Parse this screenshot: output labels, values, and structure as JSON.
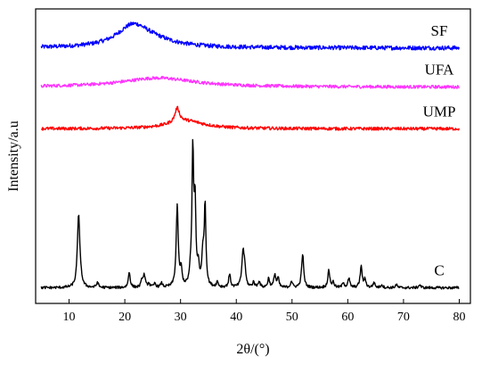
{
  "chart_data": {
    "type": "line",
    "title": "",
    "xlabel": "2θ/(°)",
    "ylabel": "Intensity/a.u",
    "xlim": [
      4,
      82
    ],
    "x_ticks": [
      10,
      20,
      30,
      40,
      50,
      60,
      70,
      80
    ],
    "y_ticks_labeled": false,
    "grid": false,
    "series": [
      {
        "name": "SF",
        "color": "#0000ff",
        "baseline": 9.3,
        "noise": 0.08,
        "peaks": [
          {
            "x": 21.5,
            "h": 0.8,
            "w": 3.5
          },
          {
            "x": 25,
            "h": 0.2,
            "w": 5
          }
        ]
      },
      {
        "name": "UFA",
        "color": "#ff33ff",
        "baseline": 7.8,
        "noise": 0.06,
        "peaks": [
          {
            "x": 26,
            "h": 0.35,
            "w": 8
          }
        ]
      },
      {
        "name": "UMP",
        "color": "#ff0000",
        "baseline": 6.2,
        "noise": 0.06,
        "peaks": [
          {
            "x": 29.4,
            "h": 0.55,
            "w": 0.5
          },
          {
            "x": 31,
            "h": 0.3,
            "w": 4
          }
        ]
      },
      {
        "name": "C",
        "color": "#000000",
        "baseline": 0.1,
        "noise": 0.05,
        "peaks": [
          {
            "x": 11.7,
            "h": 2.8,
            "w": 0.25
          },
          {
            "x": 12.1,
            "h": 0.25,
            "w": 0.2
          },
          {
            "x": 15.1,
            "h": 0.2,
            "w": 0.2
          },
          {
            "x": 20.8,
            "h": 0.6,
            "w": 0.2
          },
          {
            "x": 23.1,
            "h": 0.3,
            "w": 0.2
          },
          {
            "x": 23.5,
            "h": 0.45,
            "w": 0.2
          },
          {
            "x": 24.3,
            "h": 0.15,
            "w": 0.2
          },
          {
            "x": 25.4,
            "h": 0.15,
            "w": 0.2
          },
          {
            "x": 26.6,
            "h": 0.15,
            "w": 0.2
          },
          {
            "x": 29.4,
            "h": 3.1,
            "w": 0.22
          },
          {
            "x": 30.1,
            "h": 0.6,
            "w": 0.2
          },
          {
            "x": 31.8,
            "h": 0.4,
            "w": 0.2
          },
          {
            "x": 32.2,
            "h": 5.1,
            "w": 0.18
          },
          {
            "x": 32.6,
            "h": 3.0,
            "w": 0.18
          },
          {
            "x": 33.2,
            "h": 0.7,
            "w": 0.2
          },
          {
            "x": 34.0,
            "h": 1.2,
            "w": 0.2
          },
          {
            "x": 34.4,
            "h": 3.1,
            "w": 0.18
          },
          {
            "x": 36.6,
            "h": 0.2,
            "w": 0.2
          },
          {
            "x": 38.8,
            "h": 0.5,
            "w": 0.2
          },
          {
            "x": 41.2,
            "h": 1.3,
            "w": 0.25
          },
          {
            "x": 41.5,
            "h": 0.6,
            "w": 0.2
          },
          {
            "x": 43.1,
            "h": 0.2,
            "w": 0.2
          },
          {
            "x": 44.1,
            "h": 0.25,
            "w": 0.2
          },
          {
            "x": 45.8,
            "h": 0.35,
            "w": 0.2
          },
          {
            "x": 46.9,
            "h": 0.5,
            "w": 0.2
          },
          {
            "x": 47.5,
            "h": 0.35,
            "w": 0.2
          },
          {
            "x": 49.9,
            "h": 0.25,
            "w": 0.2
          },
          {
            "x": 51.9,
            "h": 1.3,
            "w": 0.22
          },
          {
            "x": 56.6,
            "h": 0.65,
            "w": 0.22
          },
          {
            "x": 57.4,
            "h": 0.2,
            "w": 0.2
          },
          {
            "x": 59.2,
            "h": 0.2,
            "w": 0.2
          },
          {
            "x": 60.2,
            "h": 0.35,
            "w": 0.2
          },
          {
            "x": 62.4,
            "h": 0.8,
            "w": 0.22
          },
          {
            "x": 63.1,
            "h": 0.3,
            "w": 0.2
          },
          {
            "x": 64.7,
            "h": 0.2,
            "w": 0.2
          },
          {
            "x": 66.1,
            "h": 0.12,
            "w": 0.2
          },
          {
            "x": 68.7,
            "h": 0.12,
            "w": 0.2
          },
          {
            "x": 72.9,
            "h": 0.12,
            "w": 0.2
          }
        ]
      }
    ]
  }
}
